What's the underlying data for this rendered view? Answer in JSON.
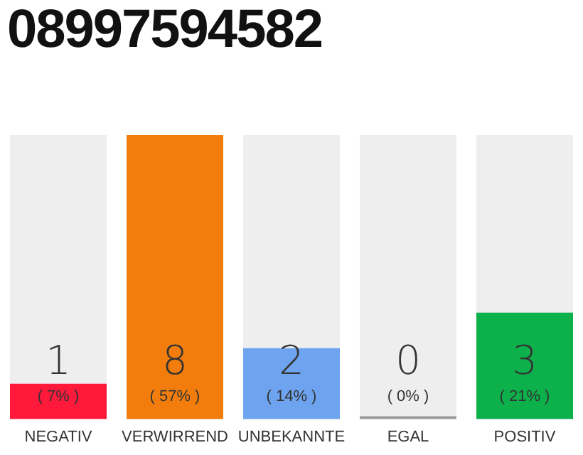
{
  "chart_data": {
    "type": "bar",
    "title": "08997594582",
    "categories": [
      "NEGATIV",
      "VERWIRREND",
      "UNBEKANNTE",
      "EGAL",
      "POSITIV"
    ],
    "values": [
      1,
      8,
      2,
      0,
      3
    ],
    "colors": [
      "#ff1a3c",
      "#f27d0c",
      "#6ea4ef",
      "#999999",
      "#0db14b"
    ],
    "value_labels": [
      "1",
      "8",
      "2",
      "0",
      "3"
    ],
    "annotations": [
      "( 7% )",
      "( 57% )",
      "( 14% )",
      "( 0% )",
      "( 21% )"
    ],
    "tick_labels": "x",
    "grid": false,
    "legend": false
  }
}
